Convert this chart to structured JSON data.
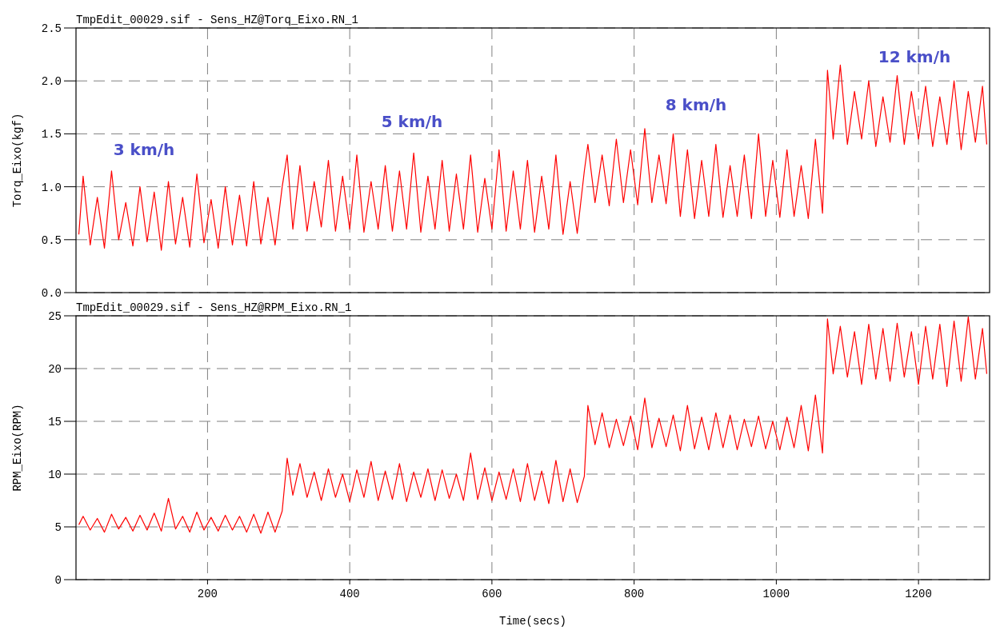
{
  "chart_data": [
    {
      "type": "line",
      "title": "TmpEdit_00029.sif - Sens_HZ@Torq_Eixo.RN_1",
      "ylabel": "Torq_Eixo(kgf)",
      "x": [
        19,
        25,
        35,
        45,
        55,
        65,
        75,
        85,
        95,
        105,
        115,
        125,
        135,
        145,
        155,
        165,
        175,
        185,
        195,
        205,
        215,
        225,
        235,
        245,
        255,
        265,
        275,
        285,
        295,
        305,
        312,
        320,
        330,
        340,
        350,
        360,
        370,
        380,
        390,
        400,
        410,
        420,
        430,
        440,
        450,
        460,
        470,
        480,
        490,
        500,
        510,
        520,
        530,
        540,
        550,
        560,
        570,
        580,
        590,
        600,
        610,
        620,
        630,
        640,
        650,
        660,
        670,
        680,
        690,
        700,
        710,
        720,
        730,
        735,
        745,
        755,
        765,
        775,
        785,
        795,
        805,
        815,
        825,
        835,
        845,
        855,
        865,
        875,
        885,
        895,
        905,
        915,
        925,
        935,
        945,
        955,
        965,
        975,
        985,
        995,
        1005,
        1015,
        1025,
        1035,
        1045,
        1055,
        1065,
        1072,
        1080,
        1090,
        1100,
        1110,
        1120,
        1130,
        1140,
        1150,
        1160,
        1170,
        1180,
        1190,
        1200,
        1210,
        1220,
        1230,
        1240,
        1250,
        1260,
        1270,
        1280,
        1290,
        1296
      ],
      "series": [
        {
          "color": "#ff0000",
          "values": [
            0.55,
            1.1,
            0.45,
            0.9,
            0.42,
            1.15,
            0.5,
            0.85,
            0.44,
            1.0,
            0.48,
            0.95,
            0.4,
            1.05,
            0.46,
            0.9,
            0.43,
            1.12,
            0.47,
            0.88,
            0.42,
            1.0,
            0.45,
            0.92,
            0.44,
            1.05,
            0.46,
            0.9,
            0.45,
            1.0,
            1.3,
            0.6,
            1.2,
            0.58,
            1.05,
            0.62,
            1.25,
            0.58,
            1.1,
            0.6,
            1.3,
            0.57,
            1.05,
            0.6,
            1.2,
            0.58,
            1.15,
            0.6,
            1.32,
            0.57,
            1.1,
            0.6,
            1.25,
            0.58,
            1.12,
            0.6,
            1.3,
            0.57,
            1.08,
            0.6,
            1.35,
            0.58,
            1.15,
            0.6,
            1.25,
            0.57,
            1.1,
            0.6,
            1.3,
            0.55,
            1.05,
            0.56,
            1.15,
            1.4,
            0.85,
            1.3,
            0.82,
            1.45,
            0.85,
            1.35,
            0.83,
            1.55,
            0.85,
            1.3,
            0.84,
            1.5,
            0.72,
            1.35,
            0.7,
            1.25,
            0.72,
            1.4,
            0.71,
            1.2,
            0.72,
            1.3,
            0.7,
            1.5,
            0.72,
            1.25,
            0.71,
            1.35,
            0.72,
            1.2,
            0.7,
            1.45,
            0.75,
            2.1,
            1.45,
            2.15,
            1.4,
            1.9,
            1.45,
            2.0,
            1.38,
            1.85,
            1.42,
            2.05,
            1.4,
            1.9,
            1.45,
            1.95,
            1.38,
            1.85,
            1.4,
            2.0,
            1.35,
            1.9,
            1.42,
            1.95,
            1.4
          ]
        }
      ],
      "xlim": [
        15,
        1300
      ],
      "xticks": [
        200,
        400,
        600,
        800,
        1000,
        1200
      ],
      "ylim": [
        0,
        2.5
      ],
      "yticks": [
        {
          "value": 0,
          "label": "0.0"
        },
        {
          "value": 0.5,
          "label": "0.5"
        },
        {
          "value": 1,
          "label": "1.0"
        },
        {
          "value": 1.5,
          "label": "1.5"
        },
        {
          "value": 2,
          "label": "2.0"
        },
        {
          "value": 2.5,
          "label": "2.5"
        }
      ],
      "grid": true,
      "tick_labels": "y",
      "line_style": "solid",
      "annotations": [
        "3 km/h",
        "5 km/h",
        "8 km/h",
        "12 km/h"
      ]
    },
    {
      "type": "line",
      "title": "TmpEdit_00029.sif - Sens_HZ@RPM_Eixo.RN_1",
      "ylabel": "RPM_Eixo(RPM)",
      "xlabel": "Time(secs)",
      "x": [
        19,
        25,
        35,
        45,
        55,
        65,
        75,
        85,
        95,
        105,
        115,
        125,
        135,
        145,
        155,
        165,
        175,
        185,
        195,
        205,
        215,
        225,
        235,
        245,
        255,
        265,
        275,
        285,
        295,
        305,
        312,
        320,
        330,
        340,
        350,
        360,
        370,
        380,
        390,
        400,
        410,
        420,
        430,
        440,
        450,
        460,
        470,
        480,
        490,
        500,
        510,
        520,
        530,
        540,
        550,
        560,
        570,
        580,
        590,
        600,
        610,
        620,
        630,
        640,
        650,
        660,
        670,
        680,
        690,
        700,
        710,
        720,
        730,
        735,
        745,
        755,
        765,
        775,
        785,
        795,
        805,
        815,
        825,
        835,
        845,
        855,
        865,
        875,
        885,
        895,
        905,
        915,
        925,
        935,
        945,
        955,
        965,
        975,
        985,
        995,
        1005,
        1015,
        1025,
        1035,
        1045,
        1055,
        1065,
        1072,
        1080,
        1090,
        1100,
        1110,
        1120,
        1130,
        1140,
        1150,
        1160,
        1170,
        1180,
        1190,
        1200,
        1210,
        1220,
        1230,
        1240,
        1250,
        1260,
        1270,
        1280,
        1290,
        1296
      ],
      "series": [
        {
          "color": "#ff0000",
          "values": [
            5.2,
            6.0,
            4.7,
            5.8,
            4.5,
            6.2,
            4.8,
            5.9,
            4.6,
            6.1,
            4.7,
            6.3,
            4.6,
            7.7,
            4.8,
            6.0,
            4.5,
            6.4,
            4.7,
            5.9,
            4.6,
            6.1,
            4.7,
            6.0,
            4.5,
            6.2,
            4.4,
            6.4,
            4.5,
            6.5,
            11.5,
            8.0,
            11.0,
            7.8,
            10.2,
            7.5,
            10.5,
            7.8,
            10.0,
            7.4,
            10.4,
            7.8,
            11.2,
            7.5,
            10.3,
            7.6,
            11.0,
            7.4,
            10.2,
            7.8,
            10.5,
            7.5,
            10.4,
            7.7,
            10.0,
            7.5,
            12.0,
            7.6,
            10.6,
            7.5,
            10.2,
            7.6,
            10.5,
            7.4,
            11.0,
            7.5,
            10.3,
            7.2,
            11.3,
            7.4,
            10.5,
            7.3,
            9.8,
            16.5,
            12.8,
            15.8,
            12.5,
            15.2,
            12.7,
            15.5,
            12.3,
            17.2,
            12.5,
            15.3,
            12.6,
            15.6,
            12.2,
            16.5,
            12.4,
            15.4,
            12.3,
            15.8,
            12.5,
            15.6,
            12.3,
            15.2,
            12.6,
            15.5,
            12.4,
            15.0,
            12.3,
            15.4,
            12.5,
            16.5,
            12.2,
            17.5,
            12.0,
            24.7,
            19.5,
            24.0,
            19.2,
            23.5,
            18.5,
            24.2,
            19.0,
            23.8,
            18.8,
            24.3,
            19.2,
            23.5,
            18.5,
            24.0,
            19.0,
            24.2,
            18.3,
            24.5,
            18.8,
            24.9,
            19.0,
            23.8,
            19.5
          ]
        }
      ],
      "xlim": [
        15,
        1300
      ],
      "xticks": [
        200,
        400,
        600,
        800,
        1000,
        1200
      ],
      "ylim": [
        0,
        25
      ],
      "yticks": [
        0,
        5,
        10,
        15,
        20,
        25
      ],
      "grid": true,
      "line_style": "solid"
    }
  ]
}
